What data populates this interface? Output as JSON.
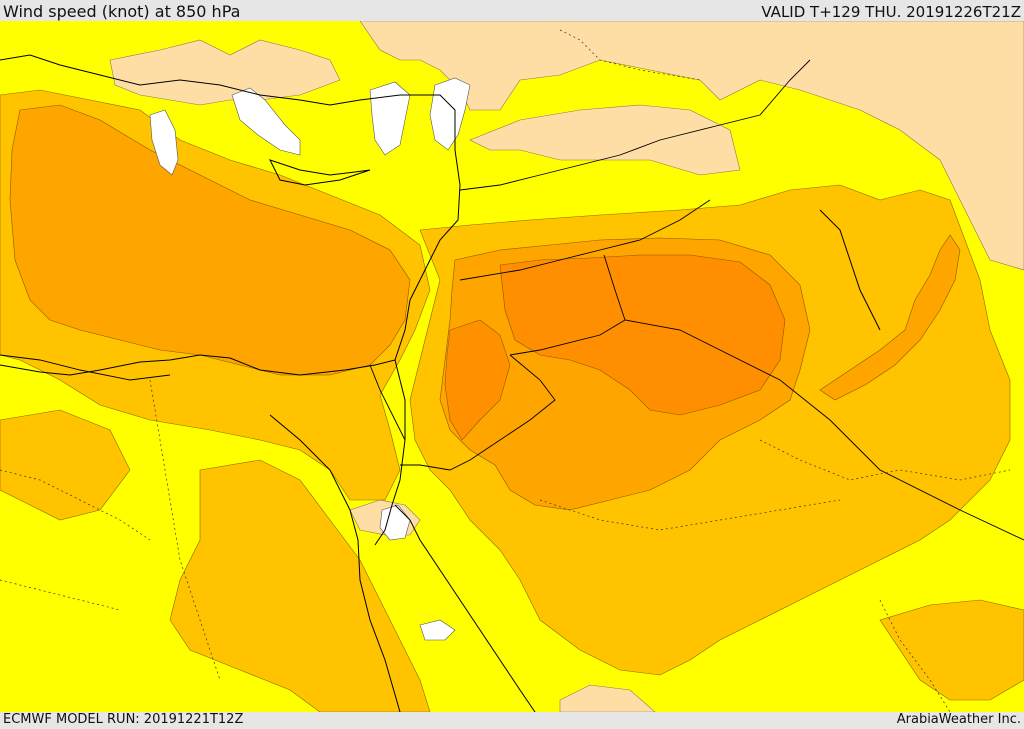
{
  "header": {
    "title": "Wind speed (knot) at 850 hPa",
    "valid": "VALID T+129 THU. 20191226T21Z"
  },
  "footer": {
    "model_run": "ECMWF MODEL RUN: 20191221T12Z",
    "credit": "ArabiaWeather Inc."
  },
  "map": {
    "colors": {
      "calm": "#ffffff",
      "light": "#ffdea6",
      "yellow": "#ffff00",
      "yellow_orange": "#ffe000",
      "gold": "#ffc300",
      "orange": "#ffa500",
      "dark_orange": "#ff8c00"
    }
  }
}
